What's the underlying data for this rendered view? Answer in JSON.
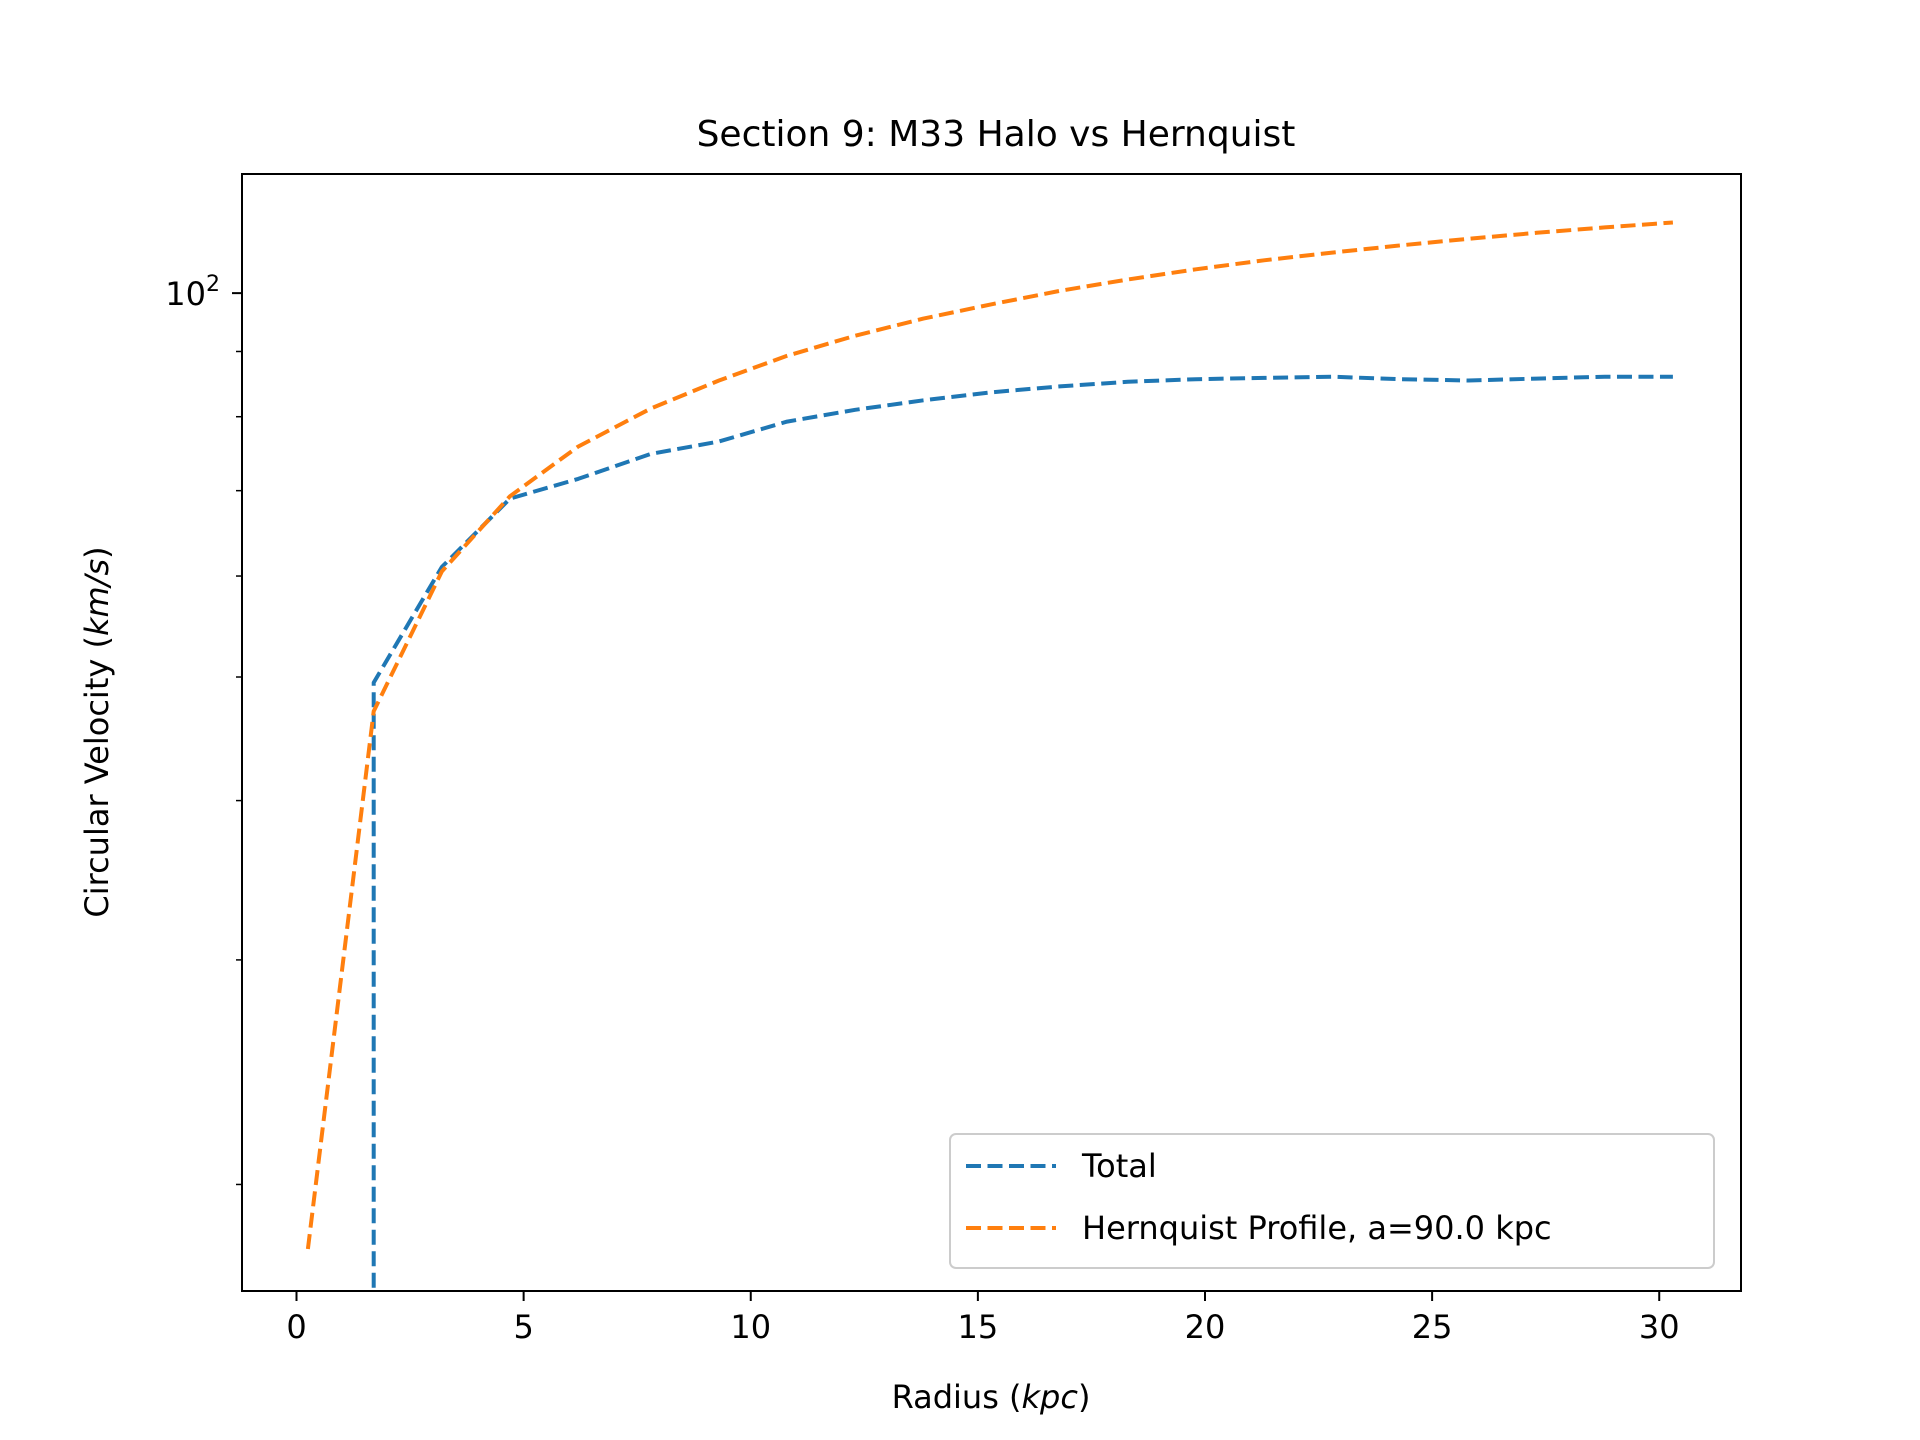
{
  "chart_data": {
    "type": "line",
    "title": "Section 9: M33 Halo vs Hernquist",
    "xlabel": {
      "text": "Radius (",
      "var": "kpc",
      "close": ")"
    },
    "ylabel": {
      "text": "Circular Velocity (",
      "var": "km/s",
      "close": ")"
    },
    "xlim": [
      -1.2,
      31.8
    ],
    "xticks": [
      0,
      5,
      10,
      15,
      20,
      25,
      30
    ],
    "xtick_labels": [
      "0",
      "5",
      "10",
      "15",
      "20",
      "25",
      "30"
    ],
    "ylim": [
      16.5,
      124
    ],
    "y_scale": "log",
    "ytick_major": [
      {
        "value": 100,
        "base": "10",
        "exp": "2"
      }
    ],
    "ytick_minor": [
      20,
      30,
      40,
      50,
      60,
      70,
      80,
      90
    ],
    "grid": false,
    "legend_position": "lower-right",
    "series": [
      {
        "name": "Total",
        "color": "#1f77b4",
        "style": "dashed",
        "x": [
          1.7,
          1.7,
          3.2,
          4.7,
          6.2,
          7.8,
          9.3,
          10.8,
          12.3,
          13.8,
          15.3,
          16.8,
          18.3,
          19.8,
          21.3,
          22.8,
          24.3,
          25.8,
          27.3,
          28.8,
          30.3
        ],
        "y": [
          16.6,
          49.5,
          61.0,
          69.0,
          71.5,
          74.8,
          76.5,
          79.3,
          81.0,
          82.4,
          83.6,
          84.5,
          85.2,
          85.6,
          85.8,
          86.0,
          85.6,
          85.4,
          85.7,
          86.0,
          86.0
        ]
      },
      {
        "name": "Hernquist Profile, a=90.0 kpc",
        "color": "#ff7f0e",
        "style": "dashed",
        "x": [
          0.25,
          1.7,
          3.2,
          4.7,
          6.2,
          7.8,
          9.3,
          10.8,
          12.3,
          13.8,
          15.3,
          16.8,
          18.3,
          19.8,
          21.3,
          22.8,
          24.3,
          25.8,
          27.3,
          28.8,
          30.3
        ],
        "y": [
          17.8,
          47.0,
          60.5,
          69.3,
          75.8,
          81.2,
          85.4,
          89.3,
          92.6,
          95.5,
          98.0,
          100.4,
          102.5,
          104.4,
          106.1,
          107.6,
          109.0,
          110.3,
          111.5,
          112.6,
          113.6
        ]
      }
    ]
  }
}
